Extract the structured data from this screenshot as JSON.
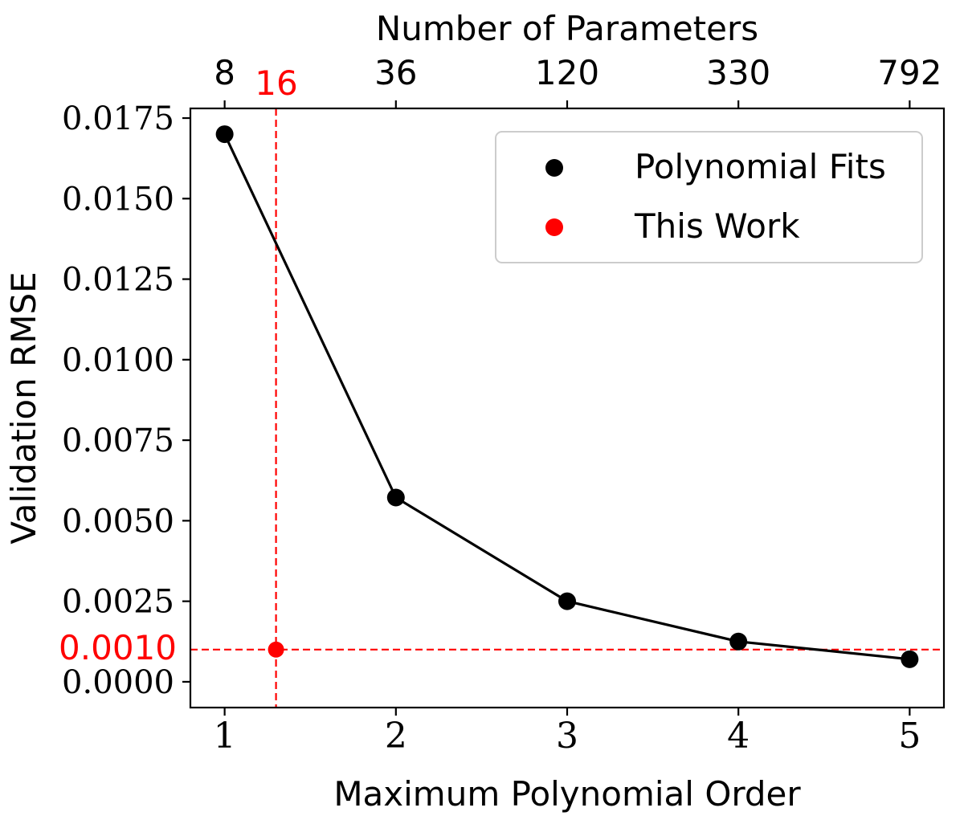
{
  "chart_data": {
    "type": "line",
    "xlabel": "Maximum Polynomial Order",
    "ylabel": "Validation RMSE",
    "top_xlabel": "Number of Parameters",
    "xlim": [
      0.8,
      5.2
    ],
    "ylim": [
      -0.0008,
      0.0178
    ],
    "x_ticks": [
      1,
      2,
      3,
      4,
      5
    ],
    "x_tick_labels": [
      "1",
      "2",
      "3",
      "4",
      "5"
    ],
    "y_ticks": [
      0.0,
      0.0025,
      0.005,
      0.0075,
      0.01,
      0.0125,
      0.015,
      0.0175
    ],
    "y_tick_labels": [
      "0.0000",
      "0.0025",
      "0.0050",
      "0.0075",
      "0.0100",
      "0.0125",
      "0.0150",
      "0.0175"
    ],
    "top_ticks": [
      1,
      2,
      3,
      4,
      5
    ],
    "top_tick_labels": [
      "8",
      "36",
      "120",
      "330",
      "792"
    ],
    "series": [
      {
        "name": "Polynomial Fits",
        "color": "#000000",
        "x": [
          1,
          2,
          3,
          4,
          5
        ],
        "values": [
          0.017,
          0.00572,
          0.0025,
          0.00125,
          0.0007
        ]
      },
      {
        "name": "This Work",
        "color": "#ff0000",
        "x": [
          1.3
        ],
        "values": [
          0.001
        ]
      }
    ],
    "annotations": {
      "vline": {
        "x": 1.3,
        "label": "16",
        "color": "#ff0000"
      },
      "hline": {
        "y": 0.001,
        "label": "0.0010",
        "color": "#ff0000"
      }
    },
    "legend": "top-right",
    "grid": false
  }
}
